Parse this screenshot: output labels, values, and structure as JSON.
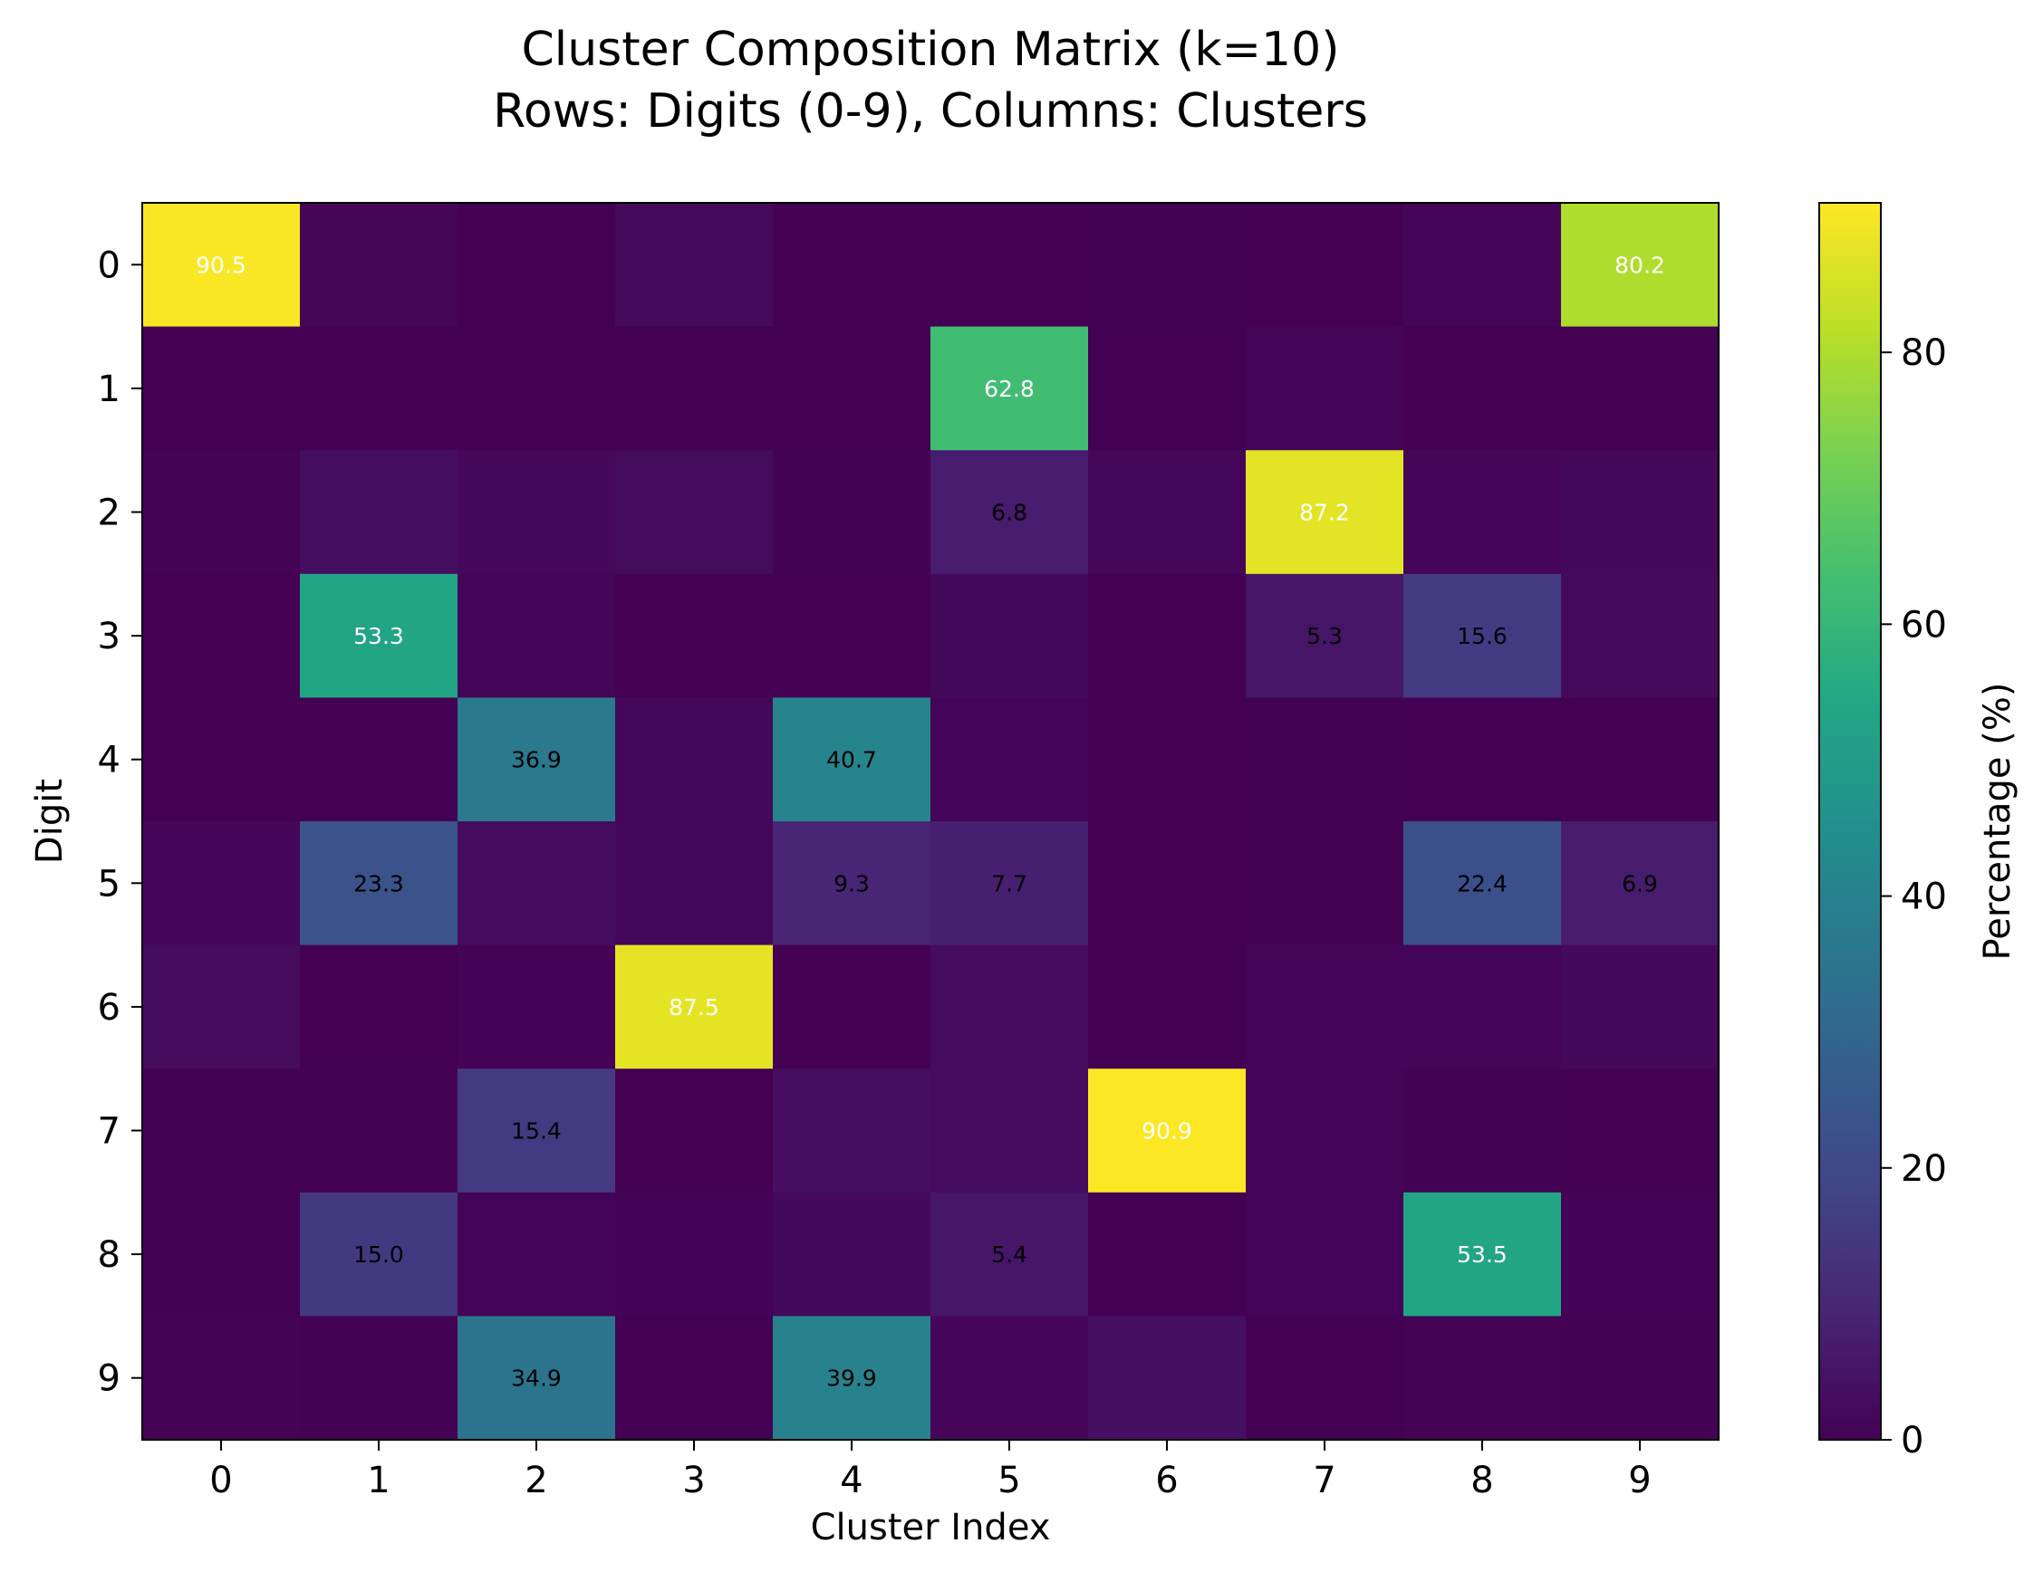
{
  "chart_data": {
    "type": "heatmap",
    "title": "Cluster Composition Matrix (k=10)",
    "subtitle": "Rows: Digits (0-9), Columns: Clusters",
    "xlabel": "Cluster Index",
    "ylabel": "Digit",
    "x_categories": [
      "0",
      "1",
      "2",
      "3",
      "4",
      "5",
      "6",
      "7",
      "8",
      "9"
    ],
    "y_categories": [
      "0",
      "1",
      "2",
      "3",
      "4",
      "5",
      "6",
      "7",
      "8",
      "9"
    ],
    "colorscale": "viridis",
    "colorbar": {
      "label": "Percentage (%)",
      "range": [
        0,
        91
      ],
      "ticks": [
        0,
        20,
        40,
        60,
        80
      ]
    },
    "annotation_threshold": 5,
    "values": [
      [
        90.5,
        1.2,
        0.1,
        2.3,
        0.1,
        0.0,
        0.3,
        0.1,
        1.1,
        80.2
      ],
      [
        0.0,
        0.0,
        0.0,
        0.1,
        0.1,
        62.8,
        0.0,
        0.8,
        0.1,
        0.1
      ],
      [
        0.4,
        3.5,
        1.8,
        2.6,
        0.2,
        6.8,
        1.5,
        87.2,
        1.4,
        2.0
      ],
      [
        0.1,
        53.3,
        1.3,
        0.1,
        0.1,
        2.1,
        0.0,
        5.3,
        15.6,
        2.3
      ],
      [
        0.1,
        0.1,
        36.9,
        1.6,
        40.7,
        0.8,
        0.1,
        0.3,
        0.1,
        0.0
      ],
      [
        1.4,
        23.3,
        2.5,
        1.5,
        9.3,
        7.7,
        0.1,
        0.2,
        22.4,
        6.9
      ],
      [
        2.8,
        0.1,
        0.6,
        87.5,
        0.1,
        2.7,
        0.1,
        1.0,
        0.7,
        2.2
      ],
      [
        0.2,
        0.3,
        15.4,
        0.1,
        3.3,
        2.7,
        90.9,
        1.0,
        0.2,
        0.1
      ],
      [
        0.3,
        15.0,
        1.1,
        0.5,
        2.1,
        5.4,
        0.1,
        0.7,
        53.5,
        0.6
      ],
      [
        0.4,
        0.3,
        34.9,
        0.1,
        39.9,
        1.4,
        3.9,
        0.1,
        0.4,
        0.2
      ]
    ]
  }
}
